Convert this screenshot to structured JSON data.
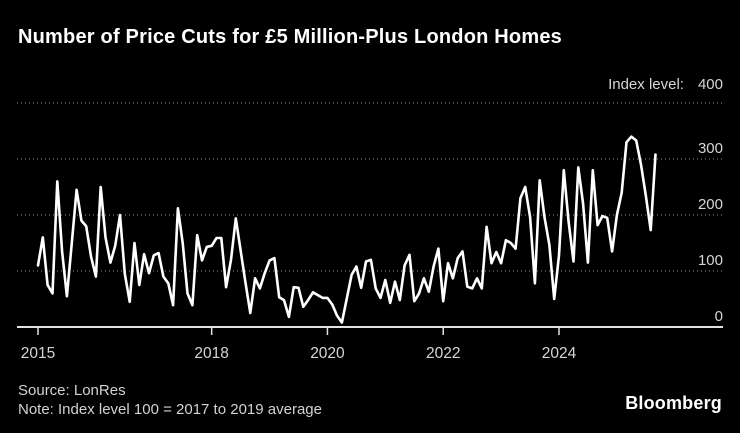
{
  "title": "Number of Price Cuts for £5 Million-Plus London Homes",
  "axis_header": {
    "label": "Index level:",
    "top_tick": "400"
  },
  "footer": {
    "source": "Source: LonRes",
    "note": "Note: Index level 100 = 2017 to 2019 average",
    "brand": "Bloomberg"
  },
  "colors": {
    "background": "#000000",
    "line": "#ffffff",
    "gridline": "#8f8f8f",
    "axis_baseline": "#e2e2e2",
    "tick_label": "#d6d6d6",
    "title_text": "#ffffff"
  },
  "chart_data": {
    "type": "line",
    "title": "Number of Price Cuts for £5 Million-Plus London Homes",
    "xlabel": "",
    "ylabel": "Index level",
    "ylim": [
      0,
      400
    ],
    "yticks": [
      0,
      100,
      200,
      300,
      400
    ],
    "xticks": [
      2015,
      2018,
      2020,
      2022,
      2024
    ],
    "x_start": "2015-01",
    "x_end": "2025-09",
    "frequency": "monthly",
    "grid": "horizontal-dotted",
    "legend": "none",
    "series": [
      {
        "name": "Price cuts index (100 = 2017-19 avg)",
        "values": [
          110,
          160,
          75,
          60,
          260,
          135,
          55,
          150,
          245,
          190,
          180,
          125,
          90,
          250,
          160,
          115,
          145,
          200,
          95,
          45,
          150,
          75,
          130,
          96,
          128,
          132,
          90,
          78,
          39,
          212,
          150,
          60,
          39,
          164,
          119,
          143,
          145,
          159,
          159,
          71,
          120,
          194,
          137,
          80,
          25,
          87,
          69,
          96,
          119,
          123,
          53,
          48,
          18,
          71,
          70,
          36,
          48,
          62,
          57,
          52,
          52,
          40,
          20,
          8,
          50,
          93,
          108,
          70,
          117,
          120,
          69,
          52,
          84,
          43,
          81,
          48,
          110,
          129,
          46,
          60,
          87,
          63,
          108,
          140,
          46,
          114,
          87,
          123,
          135,
          72,
          69,
          87,
          69,
          179,
          114,
          134,
          114,
          155,
          150,
          140,
          230,
          250,
          196,
          78,
          262,
          196,
          146,
          50,
          128,
          280,
          188,
          117,
          285,
          220,
          115,
          280,
          182,
          198,
          195,
          135,
          200,
          240,
          330,
          340,
          333,
          290,
          235,
          173,
          308
        ]
      }
    ]
  }
}
